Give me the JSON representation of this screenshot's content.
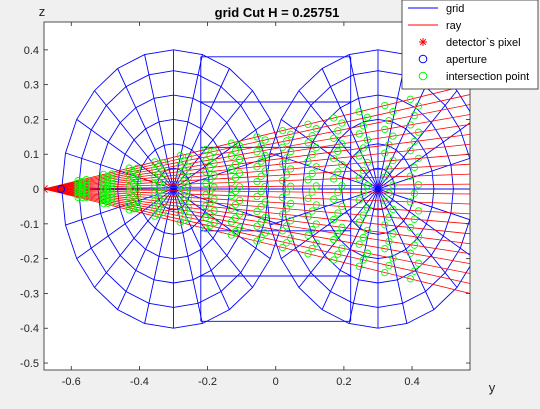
{
  "chart_data": {
    "type": "line",
    "title": "grid Cut H = 0.25751",
    "xlabel": "y",
    "ylabel": "z",
    "xlim": [
      -0.68,
      0.57
    ],
    "ylim": [
      -0.52,
      0.48
    ],
    "xticks": [
      -0.6,
      -0.4,
      -0.2,
      0,
      0.2,
      0.4
    ],
    "yticks": [
      0.4,
      0.3,
      0.2,
      0.1,
      0,
      -0.1,
      -0.2,
      -0.3,
      -0.4,
      -0.5
    ],
    "xtick_labels": [
      "-0.6",
      "-0.4",
      "-0.2",
      "0",
      "0.2",
      "0.4"
    ],
    "ytick_labels": [
      "0.4",
      "0.3",
      "0.2",
      "0.1",
      "0",
      "-0.1",
      "-0.2",
      "-0.3",
      "-0.4",
      "-0.5"
    ],
    "grid": false,
    "legend_position": "top-right",
    "series": [
      {
        "name": "grid",
        "color": "#0000ff",
        "style": "line"
      },
      {
        "name": "ray",
        "color": "#ff0000",
        "style": "line"
      },
      {
        "name": "detector`s pixel",
        "color": "#ff0000",
        "style": "asterisk"
      },
      {
        "name": "aperture",
        "color": "#0000ff",
        "style": "circle"
      },
      {
        "name": "intersection point",
        "color": "#00ff00",
        "style": "circle"
      }
    ],
    "geometry": {
      "focus_left": [
        -0.3,
        0.0
      ],
      "focus_right": [
        0.3,
        0.0
      ],
      "detector": [
        -0.68,
        0.0
      ],
      "aperture": [
        -0.63,
        0.0
      ],
      "grid_radius": 0.4
    }
  }
}
